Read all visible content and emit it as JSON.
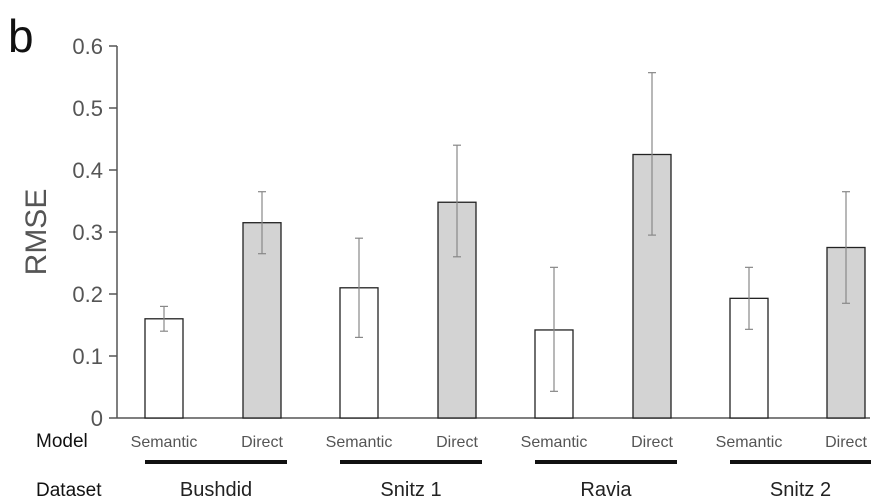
{
  "chart_data": {
    "type": "bar",
    "panel_label": "b",
    "ylabel": "RMSE",
    "ylim": [
      0,
      0.6
    ],
    "yticks": [
      "0",
      "0.1",
      "0.2",
      "0.3",
      "0.4",
      "0.5",
      "0.6"
    ],
    "row_labels": {
      "model": "Model",
      "dataset": "Dataset"
    },
    "groups": [
      {
        "dataset": "Bushdid",
        "bars": [
          {
            "model": "Semantic",
            "value": 0.16,
            "err_low": 0.14,
            "err_high": 0.18
          },
          {
            "model": "Direct",
            "value": 0.315,
            "err_low": 0.265,
            "err_high": 0.365
          }
        ]
      },
      {
        "dataset": "Snitz 1",
        "bars": [
          {
            "model": "Semantic",
            "value": 0.21,
            "err_low": 0.13,
            "err_high": 0.29
          },
          {
            "model": "Direct",
            "value": 0.348,
            "err_low": 0.26,
            "err_high": 0.44
          }
        ]
      },
      {
        "dataset": "Ravia",
        "bars": [
          {
            "model": "Semantic",
            "value": 0.142,
            "err_low": 0.043,
            "err_high": 0.243
          },
          {
            "model": "Direct",
            "value": 0.425,
            "err_low": 0.295,
            "err_high": 0.557
          }
        ]
      },
      {
        "dataset": "Snitz 2",
        "bars": [
          {
            "model": "Semantic",
            "value": 0.193,
            "err_low": 0.143,
            "err_high": 0.243
          },
          {
            "model": "Direct",
            "value": 0.275,
            "err_low": 0.185,
            "err_high": 0.365
          }
        ]
      }
    ],
    "colors": {
      "Semantic": "#ffffff",
      "Direct": "#d3d3d3",
      "outline": "#222222",
      "error": "#888888",
      "axis": "#555555"
    }
  }
}
